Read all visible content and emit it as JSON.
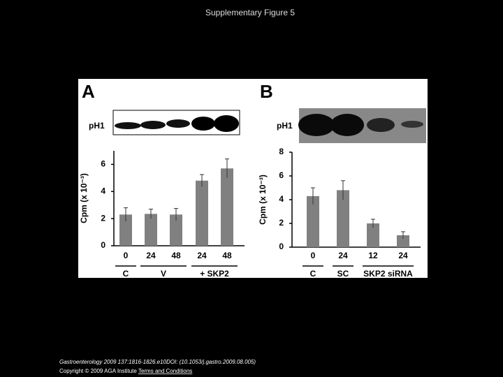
{
  "slide_title": "Supplementary Figure 5",
  "chart_data": [
    {
      "type": "bar",
      "panel": "A",
      "blot_label": "pH1",
      "y_label": "Cpm (x 10⁻³)",
      "categories": [
        "0",
        "24",
        "48",
        "24",
        "48"
      ],
      "values": [
        2.3,
        2.35,
        2.3,
        4.8,
        5.7
      ],
      "errors": [
        0.5,
        0.35,
        0.45,
        0.45,
        0.7
      ],
      "groups": [
        "C",
        "V",
        "+ SKP2"
      ],
      "color": "#808080",
      "ylim": [
        0,
        7
      ],
      "yticks": [
        0,
        2,
        4,
        6
      ]
    },
    {
      "type": "bar",
      "panel": "B",
      "blot_label": "pH1",
      "y_label": "Cpm (x 10⁻³)",
      "categories": [
        "0",
        "24",
        "12",
        "24"
      ],
      "values": [
        4.3,
        4.8,
        2.0,
        1.0
      ],
      "errors": [
        0.7,
        0.8,
        0.35,
        0.3
      ],
      "groups": [
        "C",
        "SC",
        "SKP2 siRNA"
      ],
      "color": "#808080",
      "ylim": [
        0,
        8
      ],
      "yticks": [
        0,
        2,
        4,
        6,
        8
      ]
    }
  ],
  "footer": {
    "citation": "Gastroenterology 2009 137:1816-1826.e10DOI: (10.1053/j.gastro.2009.08.005)",
    "copyright": "Copyright © 2009 AGA Institute",
    "link": "Terms and Conditions"
  }
}
